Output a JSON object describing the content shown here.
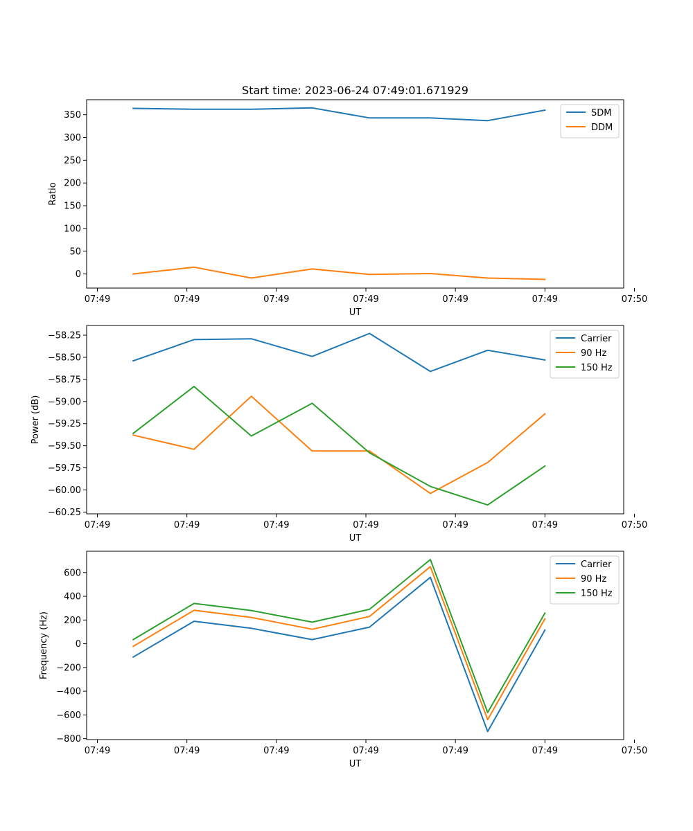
{
  "chart_data": [
    {
      "type": "line",
      "title": "Start time: 2023-06-24 07:49:01.671929",
      "xlabel": "UT",
      "ylabel": "Ratio",
      "x": [
        0.55,
        0.72,
        0.88,
        1.05,
        1.21,
        1.38,
        1.54,
        1.7
      ],
      "xlim": [
        0.42,
        1.92
      ],
      "x_ticks": [
        0.45,
        0.7,
        0.95,
        1.2,
        1.45,
        1.7,
        1.95
      ],
      "x_tick_labels": [
        "07:49",
        "07:49",
        "07:49",
        "07:49",
        "07:49",
        "07:49",
        "07:50"
      ],
      "ylim": [
        -31,
        383
      ],
      "y_ticks": [
        0,
        50,
        100,
        150,
        200,
        250,
        300,
        350
      ],
      "legend": "upper right",
      "series": [
        {
          "name": "SDM",
          "color": "#1f77b4",
          "values": [
            364,
            362,
            362,
            365,
            343,
            343,
            337,
            360
          ]
        },
        {
          "name": "DDM",
          "color": "#ff7f0e",
          "values": [
            0,
            15,
            -9,
            11,
            -1,
            1,
            -9,
            -12
          ]
        }
      ]
    },
    {
      "type": "line",
      "title": "",
      "xlabel": "UT",
      "ylabel": "Power (dB)",
      "x": [
        0.55,
        0.72,
        0.88,
        1.05,
        1.21,
        1.38,
        1.54,
        1.7
      ],
      "xlim": [
        0.42,
        1.92
      ],
      "x_ticks": [
        0.45,
        0.7,
        0.95,
        1.2,
        1.45,
        1.7,
        1.95
      ],
      "x_tick_labels": [
        "07:49",
        "07:49",
        "07:49",
        "07:49",
        "07:49",
        "07:49",
        "07:50"
      ],
      "ylim": [
        -60.27,
        -58.14
      ],
      "y_ticks": [
        -60.25,
        -60.0,
        -59.75,
        -59.5,
        -59.25,
        -59.0,
        -58.75,
        -58.5,
        -58.25
      ],
      "y_tick_labels": [
        "−60.25",
        "−60.00",
        "−59.75",
        "−59.50",
        "−59.25",
        "−59.00",
        "−58.75",
        "−58.50",
        "−58.25"
      ],
      "legend": "upper right",
      "series": [
        {
          "name": "Carrier",
          "color": "#1f77b4",
          "values": [
            -58.54,
            -58.3,
            -58.29,
            -58.49,
            -58.23,
            -58.66,
            -58.42,
            -58.53
          ]
        },
        {
          "name": "90 Hz",
          "color": "#ff7f0e",
          "values": [
            -59.38,
            -59.54,
            -58.94,
            -59.56,
            -59.56,
            -60.04,
            -59.69,
            -59.14
          ]
        },
        {
          "name": "150 Hz",
          "color": "#2ca02c",
          "values": [
            -59.36,
            -58.83,
            -59.39,
            -59.02,
            -59.58,
            -59.96,
            -60.17,
            -59.73
          ]
        }
      ]
    },
    {
      "type": "line",
      "title": "",
      "xlabel": "UT",
      "ylabel": "Frequency (Hz)",
      "x": [
        0.55,
        0.72,
        0.88,
        1.05,
        1.21,
        1.38,
        1.54,
        1.7
      ],
      "xlim": [
        0.42,
        1.92
      ],
      "x_ticks": [
        0.45,
        0.7,
        0.95,
        1.2,
        1.45,
        1.7,
        1.95
      ],
      "x_tick_labels": [
        "07:49",
        "07:49",
        "07:49",
        "07:49",
        "07:49",
        "07:49",
        "07:50"
      ],
      "ylim": [
        -808,
        780
      ],
      "y_ticks": [
        -800,
        -600,
        -400,
        -200,
        0,
        200,
        400,
        600
      ],
      "y_tick_labels": [
        "−800",
        "−600",
        "−400",
        "−200",
        "0",
        "200",
        "400",
        "600"
      ],
      "legend": "upper right",
      "series": [
        {
          "name": "Carrier",
          "color": "#1f77b4",
          "values": [
            -112,
            190,
            130,
            35,
            140,
            560,
            -740,
            115
          ]
        },
        {
          "name": "90 Hz",
          "color": "#ff7f0e",
          "values": [
            -22,
            282,
            222,
            122,
            230,
            650,
            -640,
            210
          ]
        },
        {
          "name": "150 Hz",
          "color": "#2ca02c",
          "values": [
            35,
            340,
            280,
            182,
            290,
            710,
            -580,
            258
          ]
        }
      ]
    }
  ]
}
